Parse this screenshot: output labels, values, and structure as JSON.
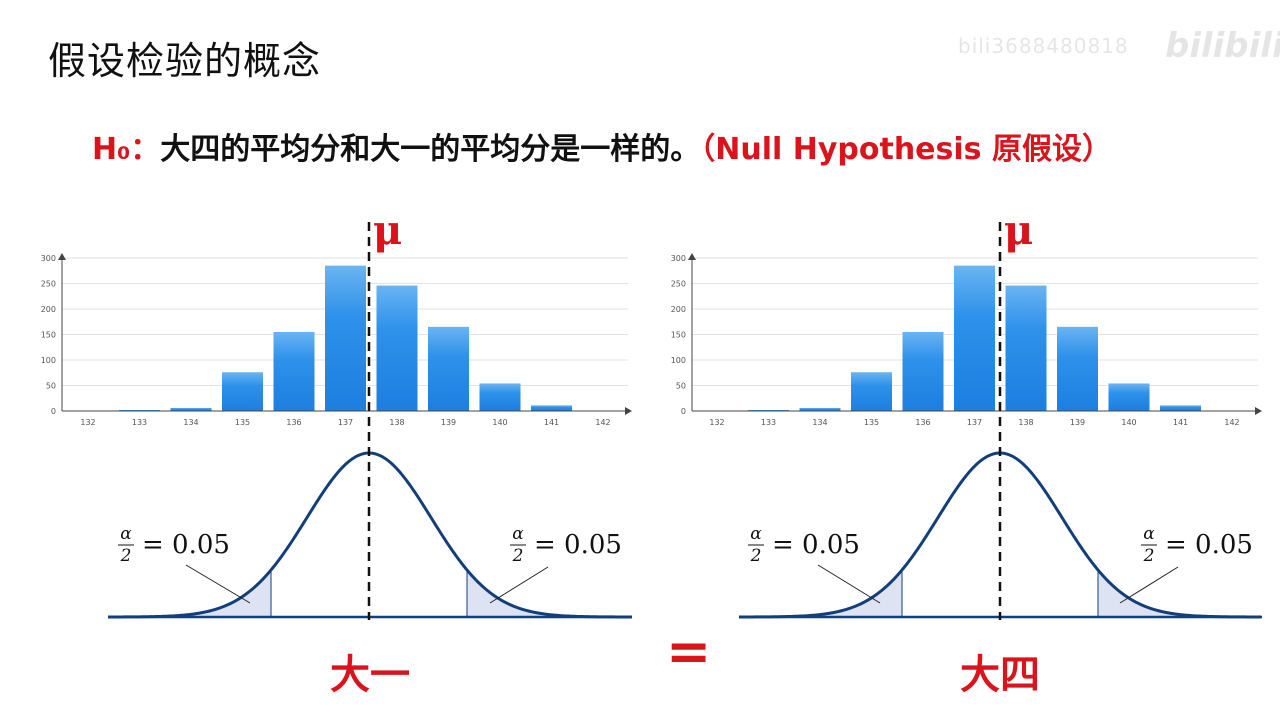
{
  "page": {
    "title": "假设检验的概念",
    "watermark": "bili3688480818",
    "watermark_logo": "bilibili"
  },
  "hypothesis": {
    "h0": "H₀",
    "separator": "：",
    "statement": "大四的平均分和大一的平均分是一样的。",
    "english": "（Null Hypothesis 原假设）"
  },
  "mu_label": "μ",
  "equals_sign": "=",
  "colors": {
    "accent_red": "#d9141c",
    "bar_blue": "#2a8fe6",
    "curve_navy": "#123f7a",
    "tail_fill": "#dde3f2",
    "grid": "#e2e2e2"
  },
  "chart_data": [
    {
      "type": "bar",
      "panel_label": "大一",
      "categories": [
        "132",
        "133",
        "134",
        "135",
        "136",
        "137",
        "138",
        "139",
        "140",
        "141",
        "142"
      ],
      "values": [
        0,
        2,
        6,
        76,
        155,
        285,
        246,
        165,
        54,
        11,
        0
      ],
      "ylim": [
        0,
        300
      ],
      "yticks": [
        "0",
        "50",
        "100",
        "150",
        "200",
        "250",
        "300"
      ],
      "grid": true,
      "mean_marker": "μ",
      "normal_curve": {
        "tail_annotation_alpha": "α",
        "tail_annotation_den": "2",
        "tail_annotation_value": "= 0.05"
      }
    },
    {
      "type": "bar",
      "panel_label": "大四",
      "categories": [
        "132",
        "133",
        "134",
        "135",
        "136",
        "137",
        "138",
        "139",
        "140",
        "141",
        "142"
      ],
      "values": [
        0,
        2,
        6,
        76,
        155,
        285,
        246,
        165,
        54,
        11,
        0
      ],
      "ylim": [
        0,
        300
      ],
      "yticks": [
        "0",
        "50",
        "100",
        "150",
        "200",
        "250",
        "300"
      ],
      "grid": true,
      "mean_marker": "μ",
      "normal_curve": {
        "tail_annotation_alpha": "α",
        "tail_annotation_den": "2",
        "tail_annotation_value": "= 0.05"
      }
    }
  ]
}
